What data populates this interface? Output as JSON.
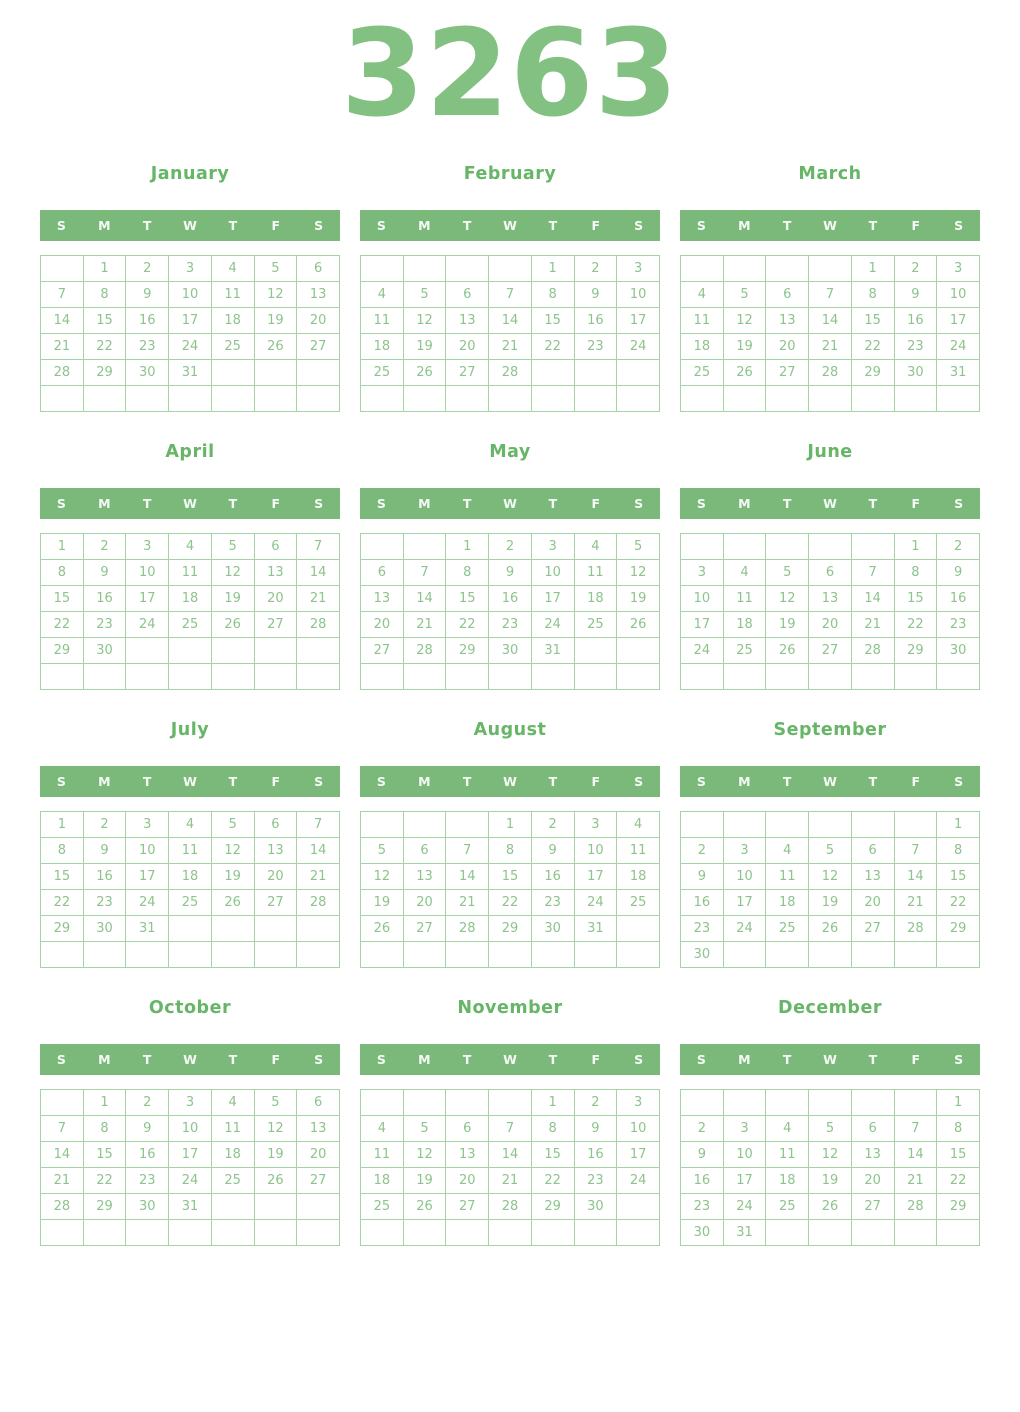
{
  "year": "3263",
  "weekdays": [
    "S",
    "M",
    "T",
    "W",
    "T",
    "F",
    "S"
  ],
  "colors": {
    "year_title": "#82c182",
    "month_title": "#67b567",
    "weekday_bar_bg": "#7bb97b",
    "weekday_text": "#ffffff",
    "grid_border": "#a5d3a5",
    "day_text": "#8dc38d",
    "page_bg": "#ffffff"
  },
  "months": [
    {
      "name": "January",
      "weeks": [
        [
          "",
          "1",
          "2",
          "3",
          "4",
          "5",
          "6"
        ],
        [
          "7",
          "8",
          "9",
          "10",
          "11",
          "12",
          "13"
        ],
        [
          "14",
          "15",
          "16",
          "17",
          "18",
          "19",
          "20"
        ],
        [
          "21",
          "22",
          "23",
          "24",
          "25",
          "26",
          "27"
        ],
        [
          "28",
          "29",
          "30",
          "31",
          "",
          "",
          ""
        ],
        [
          "",
          "",
          "",
          "",
          "",
          "",
          ""
        ]
      ]
    },
    {
      "name": "February",
      "weeks": [
        [
          "",
          "",
          "",
          "",
          "1",
          "2",
          "3"
        ],
        [
          "4",
          "5",
          "6",
          "7",
          "8",
          "9",
          "10"
        ],
        [
          "11",
          "12",
          "13",
          "14",
          "15",
          "16",
          "17"
        ],
        [
          "18",
          "19",
          "20",
          "21",
          "22",
          "23",
          "24"
        ],
        [
          "25",
          "26",
          "27",
          "28",
          "",
          "",
          ""
        ],
        [
          "",
          "",
          "",
          "",
          "",
          "",
          ""
        ]
      ]
    },
    {
      "name": "March",
      "weeks": [
        [
          "",
          "",
          "",
          "",
          "1",
          "2",
          "3"
        ],
        [
          "4",
          "5",
          "6",
          "7",
          "8",
          "9",
          "10"
        ],
        [
          "11",
          "12",
          "13",
          "14",
          "15",
          "16",
          "17"
        ],
        [
          "18",
          "19",
          "20",
          "21",
          "22",
          "23",
          "24"
        ],
        [
          "25",
          "26",
          "27",
          "28",
          "29",
          "30",
          "31"
        ],
        [
          "",
          "",
          "",
          "",
          "",
          "",
          ""
        ]
      ]
    },
    {
      "name": "April",
      "weeks": [
        [
          "1",
          "2",
          "3",
          "4",
          "5",
          "6",
          "7"
        ],
        [
          "8",
          "9",
          "10",
          "11",
          "12",
          "13",
          "14"
        ],
        [
          "15",
          "16",
          "17",
          "18",
          "19",
          "20",
          "21"
        ],
        [
          "22",
          "23",
          "24",
          "25",
          "26",
          "27",
          "28"
        ],
        [
          "29",
          "30",
          "",
          "",
          "",
          "",
          ""
        ],
        [
          "",
          "",
          "",
          "",
          "",
          "",
          ""
        ]
      ]
    },
    {
      "name": "May",
      "weeks": [
        [
          "",
          "",
          "1",
          "2",
          "3",
          "4",
          "5"
        ],
        [
          "6",
          "7",
          "8",
          "9",
          "10",
          "11",
          "12"
        ],
        [
          "13",
          "14",
          "15",
          "16",
          "17",
          "18",
          "19"
        ],
        [
          "20",
          "21",
          "22",
          "23",
          "24",
          "25",
          "26"
        ],
        [
          "27",
          "28",
          "29",
          "30",
          "31",
          "",
          ""
        ],
        [
          "",
          "",
          "",
          "",
          "",
          "",
          ""
        ]
      ]
    },
    {
      "name": "June",
      "weeks": [
        [
          "",
          "",
          "",
          "",
          "",
          "1",
          "2"
        ],
        [
          "3",
          "4",
          "5",
          "6",
          "7",
          "8",
          "9"
        ],
        [
          "10",
          "11",
          "12",
          "13",
          "14",
          "15",
          "16"
        ],
        [
          "17",
          "18",
          "19",
          "20",
          "21",
          "22",
          "23"
        ],
        [
          "24",
          "25",
          "26",
          "27",
          "28",
          "29",
          "30"
        ],
        [
          "",
          "",
          "",
          "",
          "",
          "",
          ""
        ]
      ]
    },
    {
      "name": "July",
      "weeks": [
        [
          "1",
          "2",
          "3",
          "4",
          "5",
          "6",
          "7"
        ],
        [
          "8",
          "9",
          "10",
          "11",
          "12",
          "13",
          "14"
        ],
        [
          "15",
          "16",
          "17",
          "18",
          "19",
          "20",
          "21"
        ],
        [
          "22",
          "23",
          "24",
          "25",
          "26",
          "27",
          "28"
        ],
        [
          "29",
          "30",
          "31",
          "",
          "",
          "",
          ""
        ],
        [
          "",
          "",
          "",
          "",
          "",
          "",
          ""
        ]
      ]
    },
    {
      "name": "August",
      "weeks": [
        [
          "",
          "",
          "",
          "1",
          "2",
          "3",
          "4"
        ],
        [
          "5",
          "6",
          "7",
          "8",
          "9",
          "10",
          "11"
        ],
        [
          "12",
          "13",
          "14",
          "15",
          "16",
          "17",
          "18"
        ],
        [
          "19",
          "20",
          "21",
          "22",
          "23",
          "24",
          "25"
        ],
        [
          "26",
          "27",
          "28",
          "29",
          "30",
          "31",
          ""
        ],
        [
          "",
          "",
          "",
          "",
          "",
          "",
          ""
        ]
      ]
    },
    {
      "name": "September",
      "weeks": [
        [
          "",
          "",
          "",
          "",
          "",
          "",
          "1"
        ],
        [
          "2",
          "3",
          "4",
          "5",
          "6",
          "7",
          "8"
        ],
        [
          "9",
          "10",
          "11",
          "12",
          "13",
          "14",
          "15"
        ],
        [
          "16",
          "17",
          "18",
          "19",
          "20",
          "21",
          "22"
        ],
        [
          "23",
          "24",
          "25",
          "26",
          "27",
          "28",
          "29"
        ],
        [
          "30",
          "",
          "",
          "",
          "",
          "",
          ""
        ]
      ]
    },
    {
      "name": "October",
      "weeks": [
        [
          "",
          "1",
          "2",
          "3",
          "4",
          "5",
          "6"
        ],
        [
          "7",
          "8",
          "9",
          "10",
          "11",
          "12",
          "13"
        ],
        [
          "14",
          "15",
          "16",
          "17",
          "18",
          "19",
          "20"
        ],
        [
          "21",
          "22",
          "23",
          "24",
          "25",
          "26",
          "27"
        ],
        [
          "28",
          "29",
          "30",
          "31",
          "",
          "",
          ""
        ],
        [
          "",
          "",
          "",
          "",
          "",
          "",
          ""
        ]
      ]
    },
    {
      "name": "November",
      "weeks": [
        [
          "",
          "",
          "",
          "",
          "1",
          "2",
          "3"
        ],
        [
          "4",
          "5",
          "6",
          "7",
          "8",
          "9",
          "10"
        ],
        [
          "11",
          "12",
          "13",
          "14",
          "15",
          "16",
          "17"
        ],
        [
          "18",
          "19",
          "20",
          "21",
          "22",
          "23",
          "24"
        ],
        [
          "25",
          "26",
          "27",
          "28",
          "29",
          "30",
          ""
        ],
        [
          "",
          "",
          "",
          "",
          "",
          "",
          ""
        ]
      ]
    },
    {
      "name": "December",
      "weeks": [
        [
          "",
          "",
          "",
          "",
          "",
          "",
          "1"
        ],
        [
          "2",
          "3",
          "4",
          "5",
          "6",
          "7",
          "8"
        ],
        [
          "9",
          "10",
          "11",
          "12",
          "13",
          "14",
          "15"
        ],
        [
          "16",
          "17",
          "18",
          "19",
          "20",
          "21",
          "22"
        ],
        [
          "23",
          "24",
          "25",
          "26",
          "27",
          "28",
          "29"
        ],
        [
          "30",
          "31",
          "",
          "",
          "",
          "",
          ""
        ]
      ]
    }
  ]
}
